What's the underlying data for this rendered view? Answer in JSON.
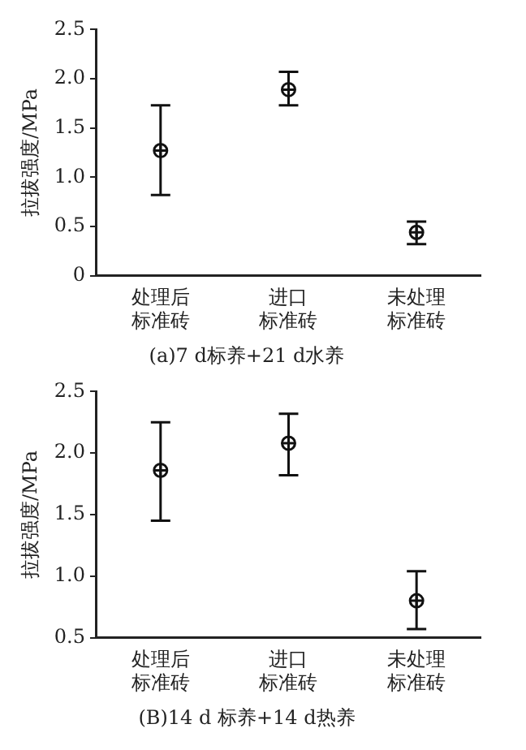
{
  "chart_data": [
    {
      "type": "scatter",
      "title": "(a)7 d标养+21 d水养",
      "ylabel": "拉拔强度/MPa",
      "categories": [
        "处理后标准砖",
        "进口标准砖",
        "未处理标准砖"
      ],
      "values": [
        1.27,
        1.89,
        0.44
      ],
      "errors": [
        [
          0.82,
          1.73
        ],
        [
          1.73,
          2.07
        ],
        [
          0.32,
          0.55
        ]
      ],
      "color": "#111111",
      "marker": "circle",
      "ylim": [
        0,
        2.5
      ],
      "yticks": [
        0,
        {
          "value": 0.5,
          "label": "0.5"
        },
        {
          "value": 1,
          "label": "1.0"
        },
        {
          "value": 1.5,
          "label": "1.5"
        },
        {
          "value": 2,
          "label": "2.0"
        },
        {
          "value": 2.5,
          "label": "2.5"
        }
      ],
      "grid": false,
      "legend": false
    },
    {
      "type": "scatter",
      "title": "(B)14 d 标养+14 d热养",
      "ylabel": "拉拔强度/MPa",
      "categories": [
        "处理后标准砖",
        "进口标准砖",
        "未处理标准砖"
      ],
      "values": [
        1.86,
        2.08,
        0.8
      ],
      "errors": [
        [
          1.45,
          2.25
        ],
        [
          1.82,
          2.32
        ],
        [
          0.57,
          1.04
        ]
      ],
      "color": "#111111",
      "marker": "circle",
      "ylim": [
        0.5,
        2.5
      ],
      "yticks": [
        {
          "value": 0.5,
          "label": "0.5"
        },
        {
          "value": 1,
          "label": "1.0"
        },
        {
          "value": 1.5,
          "label": "1.5"
        },
        {
          "value": 2,
          "label": "2.0"
        },
        {
          "value": 2.5,
          "label": "2.5"
        }
      ],
      "grid": false,
      "legend": false
    }
  ]
}
